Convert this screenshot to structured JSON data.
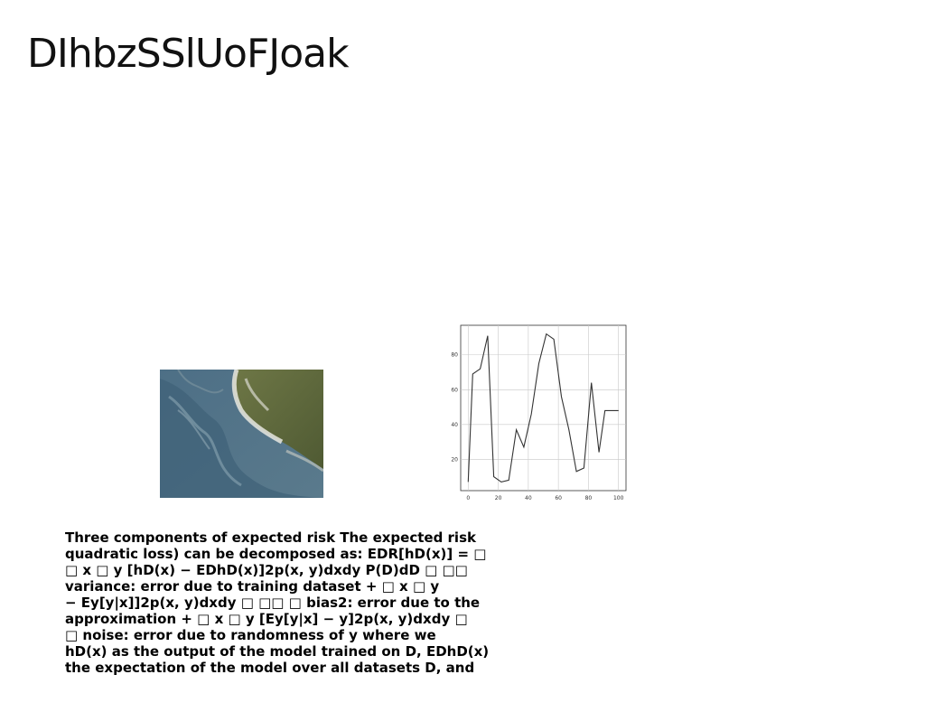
{
  "slide": {
    "title": "DIhbzSSlUoFJoak",
    "body_lines": [
      "Three components of expected risk The expected risk",
      "quadratic loss) can be decomposed as: EDR[hD(x)] = □",
      "□ x □ y [hD(x) − EDhD(x)]2p(x, y)dxdy P(D)dD □ □□",
      "variance: error due to training dataset + □ x □ y",
      "− Ey[y|x]]2p(x, y)dxdy □ □□ □ bias2: error due to the",
      "approximation + □ x □ y [Ey[y|x] − y]2p(x, y)dxdy □",
      "□ noise: error due to randomness of y where we",
      "hD(x) as the output of the model trained on D, EDhD(x)",
      "the expectation of the model over all datasets D, and"
    ]
  },
  "photo": {
    "icon": "aerial-coastline-photo"
  },
  "chart_data": {
    "type": "line",
    "x": [
      0,
      3,
      8,
      13,
      17,
      22,
      27,
      32,
      37,
      42,
      47,
      52,
      57,
      62,
      67,
      72,
      77,
      82,
      87,
      91,
      95,
      100
    ],
    "series": [
      {
        "values": [
          7,
          69,
          72,
          91,
          10,
          7,
          8,
          37,
          27,
          46,
          75,
          92,
          89,
          56,
          37,
          13,
          15,
          64,
          24,
          48,
          48,
          48
        ]
      }
    ],
    "xticks": [
      0,
      20,
      40,
      60,
      80,
      100
    ],
    "yticks": [
      20,
      40,
      60,
      80
    ],
    "xlim": [
      -5,
      105
    ],
    "ylim": [
      2,
      97
    ],
    "grid": true,
    "line_color": "#333333"
  }
}
